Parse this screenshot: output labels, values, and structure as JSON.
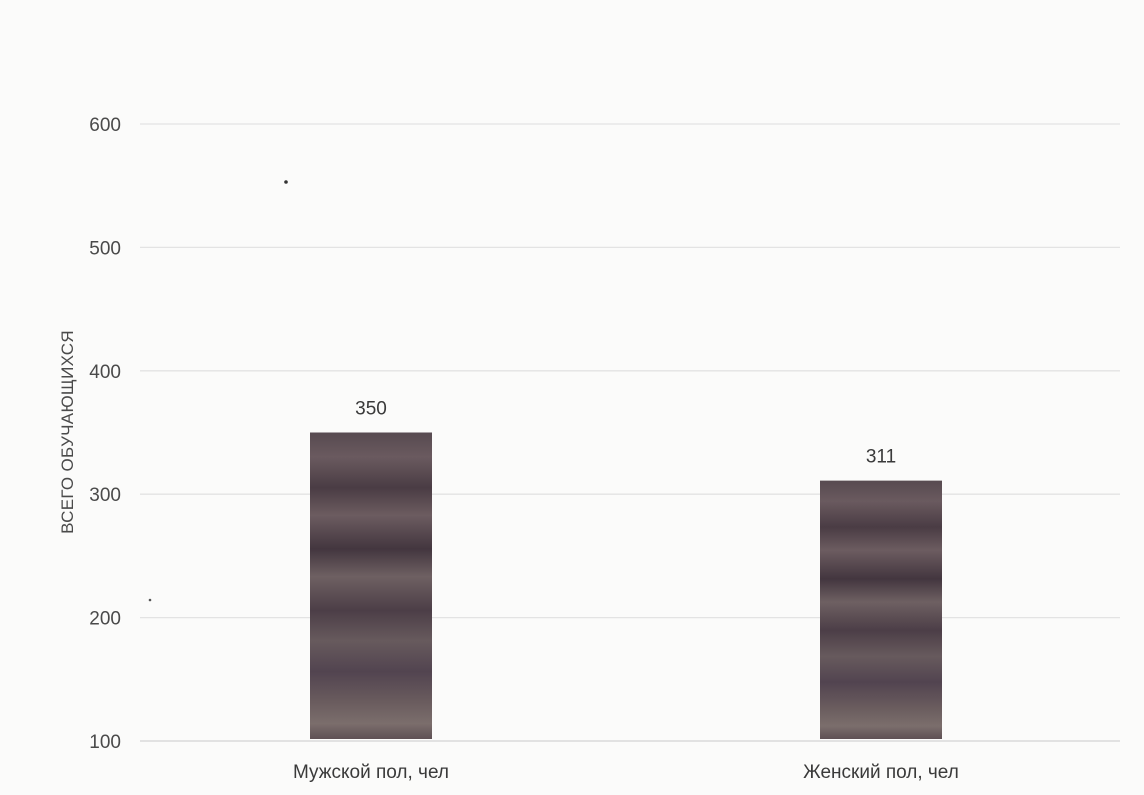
{
  "chart_data": {
    "type": "bar",
    "title": "",
    "xlabel": "",
    "ylabel": "ВСЕГО ОБУЧАЮЩИХСЯ",
    "categories": [
      "Мужской пол, чел",
      "Женский пол, чел"
    ],
    "values": [
      350,
      311
    ],
    "data_labels": [
      "350",
      "311"
    ],
    "ylim": [
      100,
      600
    ],
    "yticks": [
      100,
      200,
      300,
      400,
      500,
      600
    ],
    "ytick_labels": [
      "100",
      "200",
      "300",
      "400",
      "500",
      "600"
    ],
    "grid": true,
    "legend": "none",
    "bar_color": "#5b4b52"
  }
}
